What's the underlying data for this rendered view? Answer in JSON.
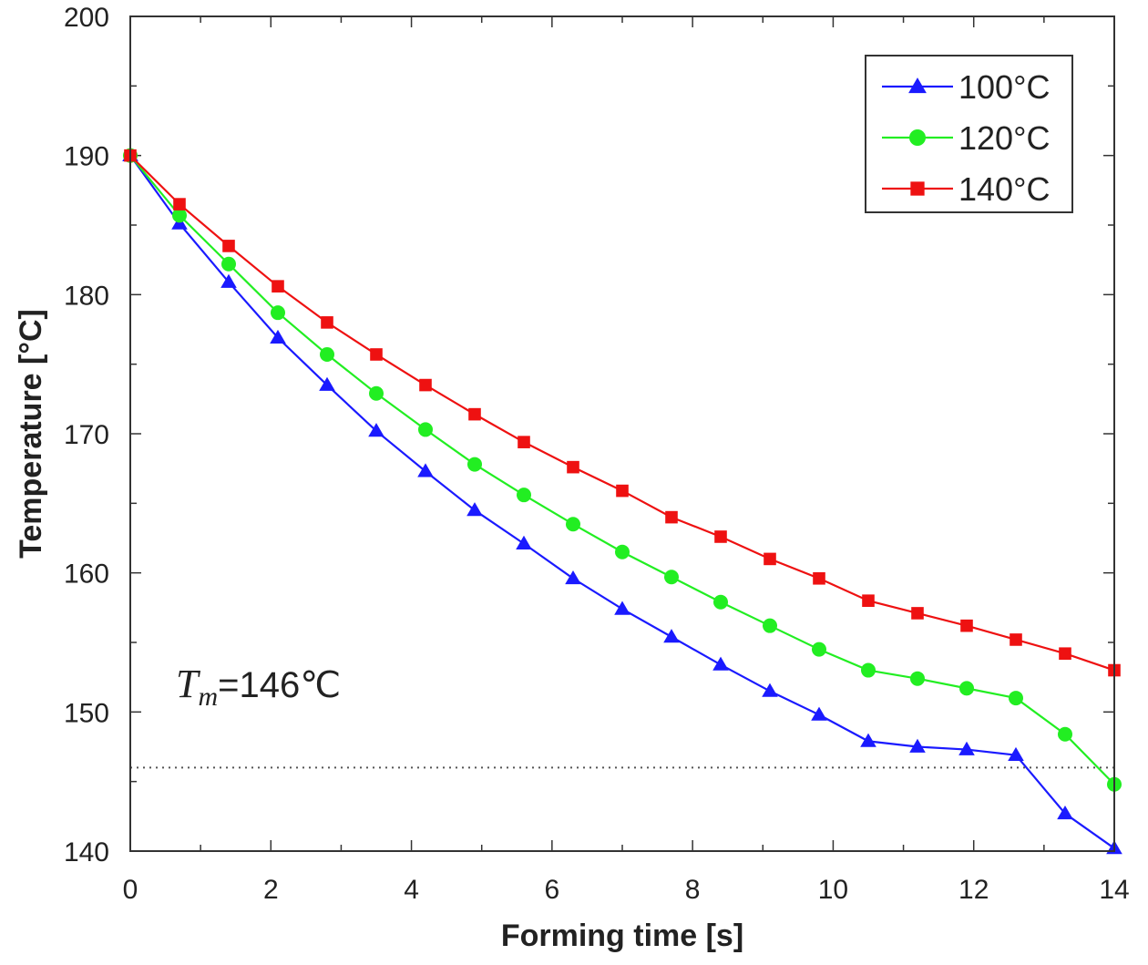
{
  "chart_data": {
    "type": "line",
    "xlabel": "Forming time [s]",
    "ylabel": "Temperature [°C]",
    "xlim": [
      0,
      14
    ],
    "ylim": [
      140,
      200
    ],
    "xticks": [
      0,
      2,
      4,
      6,
      8,
      10,
      12,
      14
    ],
    "yticks": [
      140,
      150,
      160,
      170,
      180,
      190,
      200
    ],
    "grid": false,
    "legend_position": "top-right",
    "x": [
      0,
      0.7,
      1.4,
      2.1,
      2.8,
      3.5,
      4.2,
      4.9,
      5.6,
      6.3,
      7.0,
      7.7,
      8.4,
      9.1,
      9.8,
      10.5,
      11.2,
      11.9,
      12.6,
      13.3,
      14.0
    ],
    "series": [
      {
        "name": "100°C",
        "color": "#1a1aff",
        "marker": "triangle",
        "values": [
          190,
          185.1,
          180.9,
          176.9,
          173.5,
          170.2,
          167.3,
          164.5,
          162.1,
          159.6,
          157.4,
          155.4,
          153.4,
          151.5,
          149.8,
          147.9,
          147.5,
          147.3,
          146.9,
          142.7,
          140.2
        ]
      },
      {
        "name": "120°C",
        "color": "#22ee22",
        "marker": "circle",
        "values": [
          190,
          185.7,
          182.2,
          178.7,
          175.7,
          172.9,
          170.3,
          167.8,
          165.6,
          163.5,
          161.5,
          159.7,
          157.9,
          156.2,
          154.5,
          153.0,
          152.4,
          151.7,
          151.0,
          148.4,
          144.8
        ]
      },
      {
        "name": "140°C",
        "color": "#ee1111",
        "marker": "square",
        "values": [
          190,
          186.5,
          183.5,
          180.6,
          178.0,
          175.7,
          173.5,
          171.4,
          169.4,
          167.6,
          165.9,
          164.0,
          162.6,
          161.0,
          159.6,
          158.0,
          157.1,
          156.2,
          155.2,
          154.2,
          153.0
        ]
      }
    ],
    "reference_line": {
      "y": 146,
      "style": "dotted"
    },
    "annotation": {
      "symbol": "T",
      "subscript": "m",
      "text": "=146℃"
    }
  }
}
